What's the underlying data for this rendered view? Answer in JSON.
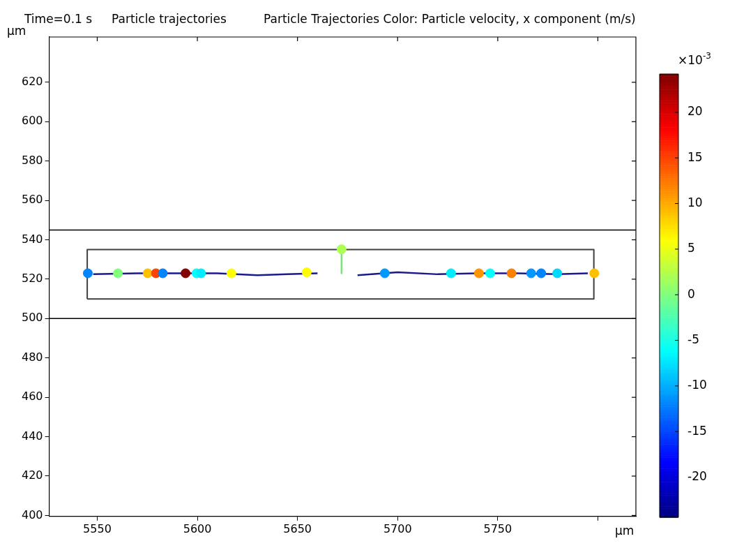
{
  "chart_data": {
    "type": "scatter",
    "title": "Time=0.1 s",
    "subtitle": "Particle trajectories",
    "clabel": "Particle Trajectories Color: Particle velocity, x component (m/s)",
    "xlabel": "μm",
    "ylabel": "μm",
    "annotations": [
      "×10$^{-3}$"
    ],
    "xlim": [
      5526,
      5819
    ],
    "xticks": [
      5550,
      5600,
      5650,
      5700,
      5750,
      {
        "value": 5800,
        "label": null
      }
    ],
    "ylim": [
      399.5,
      643
    ],
    "yticks": [
      400,
      420,
      440,
      460,
      480,
      500,
      520,
      540,
      560,
      580,
      600,
      620
    ],
    "clim": [
      -24.4,
      24.2
    ],
    "cticks": [
      -20,
      -15,
      -10,
      -5,
      0,
      5,
      10,
      15,
      20
    ],
    "marker": "circle",
    "ref_lines": [
      {
        "axis": "y",
        "value": 545,
        "color": "#000000"
      },
      {
        "axis": "y",
        "value": 500,
        "color": "#000000"
      }
    ],
    "series": [
      {
        "type": "line",
        "marker": "none",
        "color": "#404040",
        "x": [
          5545,
          5545,
          5798,
          5798
        ],
        "values": [
          510,
          535,
          535,
          510
        ]
      },
      {
        "type": "line",
        "marker": "none",
        "color": "#404040",
        "x": [
          5545,
          5798
        ],
        "values": [
          510,
          510
        ]
      },
      {
        "type": "line",
        "marker": "none",
        "color": "#1a1a8c",
        "x": [
          5548,
          5570,
          5590,
          5610,
          5630,
          5645,
          5660
        ],
        "values": [
          522.5,
          523,
          523,
          523,
          522,
          522.5,
          523
        ]
      },
      {
        "type": "line",
        "marker": "none",
        "color": "#1a1a8c",
        "x": [
          5680,
          5700,
          5720,
          5740,
          5760,
          5780,
          5795
        ],
        "values": [
          522,
          523.5,
          522.5,
          523,
          523,
          522.5,
          523
        ]
      },
      {
        "type": "line",
        "marker": "none",
        "color": "#7fe07f",
        "x": [
          5672,
          5672
        ],
        "values": [
          535,
          523
        ]
      },
      {
        "type": "scatter",
        "x": [
          5545.3,
          5560.3,
          5575.2,
          5579.3,
          5582.7,
          5594.1,
          5599.6,
          5601.8,
          5617,
          5654.6,
          5672,
          5693.6,
          5726.7,
          5740.6,
          5746.2,
          5756.9,
          5766.7,
          5771.7,
          5779.7,
          5798.2
        ],
        "values": [
          523,
          523,
          523,
          523,
          523,
          523,
          523,
          523,
          523,
          523.5,
          535.2,
          523,
          523,
          523,
          523,
          523,
          523,
          523,
          523,
          523
        ],
        "cvalues": [
          -12,
          0,
          9,
          15,
          -12,
          24,
          -6,
          -7,
          6,
          6,
          2,
          -11,
          -7,
          11,
          -6,
          12,
          -11,
          -12,
          -8,
          9
        ],
        "colors": [
          "#0085ff",
          "#82ff7d",
          "#ffc000",
          "#ff4200",
          "#0085ff",
          "#840000",
          "#04fffb",
          "#00eeff",
          "#fffe00",
          "#fffe00",
          "#acff53",
          "#009aff",
          "#00eeff",
          "#ff9600",
          "#04fffb",
          "#ff8100",
          "#009aff",
          "#0085ff",
          "#00d9ff",
          "#ffc000"
        ]
      }
    ]
  }
}
